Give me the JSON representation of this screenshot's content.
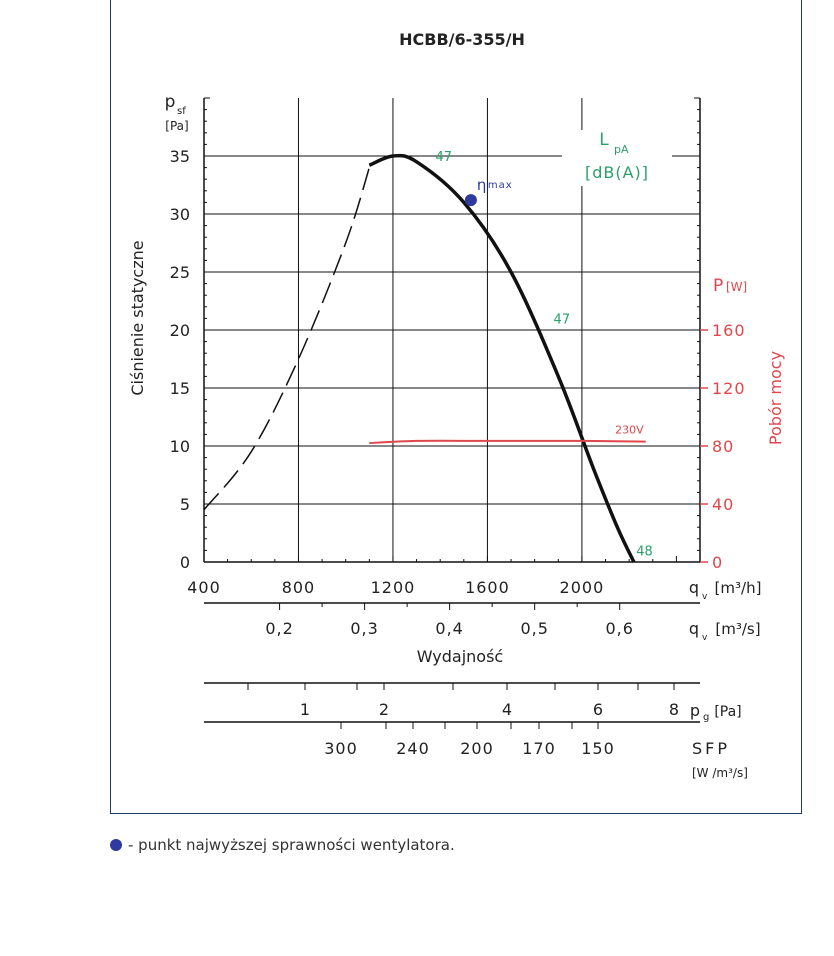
{
  "chart_data": {
    "type": "line",
    "title": "HCBB/6-355/H",
    "ylabel_symbol": "p",
    "ylabel_sub": "sf",
    "ylabel_unit": "[Pa]",
    "ylabel_text": "Ciśnienie statyczne",
    "ylim": [
      0,
      40
    ],
    "yticks": [
      0,
      5,
      10,
      15,
      20,
      25,
      30,
      35
    ],
    "xlim": [
      400,
      2500
    ],
    "xticks": [
      400,
      800,
      1200,
      1600,
      2000
    ],
    "xunit": "[m³/h]",
    "xlabel_symbol": "q",
    "xlabel_sub": "v",
    "x2ticks": [
      0.2,
      0.3,
      0.4,
      0.5,
      0.6
    ],
    "x2tick_labels": [
      "0,2",
      "0,3",
      "0,4",
      "0,5",
      "0,6"
    ],
    "x2unit": "[m³/s]",
    "x2label_text": "Wydajność",
    "right_axis": {
      "symbol": "P",
      "unit": "[W]",
      "label": "Pobór mocy",
      "ticks": [
        0,
        40,
        80,
        120,
        160
      ],
      "color": "#e0474c"
    },
    "lpa_label": {
      "l": "L",
      "sub": "pA",
      "unit": "[dB(A)]",
      "color": "#2aa06a"
    },
    "pg_scale": {
      "label_symbol": "p",
      "label_sub": "g",
      "label_unit": "[Pa]",
      "ticks": [
        "1",
        "2",
        "4",
        "6",
        "8"
      ]
    },
    "sfp_scale": {
      "label": "SFP",
      "unit": "[W /m³/s]",
      "ticks": [
        "300",
        "240",
        "200",
        "170",
        "150"
      ]
    },
    "series": [
      {
        "type": "dashed",
        "color": "#111111",
        "points": [
          [
            400,
            4.5
          ],
          [
            600,
            9.5
          ],
          [
            800,
            17.5
          ],
          [
            1000,
            27.5
          ],
          [
            1100,
            34
          ]
        ]
      },
      {
        "type": "solid",
        "color": "#111111",
        "points": [
          [
            1100,
            34.2
          ],
          [
            1200,
            35
          ],
          [
            1300,
            34.5
          ],
          [
            1500,
            31
          ],
          [
            1700,
            25
          ],
          [
            1900,
            16
          ],
          [
            2050,
            8
          ],
          [
            2150,
            3
          ],
          [
            2220,
            0
          ]
        ]
      },
      {
        "type": "solid",
        "name": "230V",
        "axis": "right",
        "color": "#e0474c",
        "points": [
          [
            1100,
            82
          ],
          [
            1300,
            83.5
          ],
          [
            1600,
            83.5
          ],
          [
            2000,
            83.5
          ],
          [
            2270,
            83
          ]
        ]
      }
    ],
    "noise_labels": [
      {
        "text": "47",
        "x": 1380,
        "y": 35
      },
      {
        "text": "47",
        "x": 1880,
        "y": 21
      },
      {
        "text": "48",
        "x": 2230,
        "y": 1
      }
    ],
    "eta_max": {
      "symbol": "η",
      "sub": "max",
      "x": 1530,
      "y": 31.2,
      "color": "#2e3a9e"
    }
  },
  "legend_text": "- punkt najwyższej sprawności wentylatora."
}
